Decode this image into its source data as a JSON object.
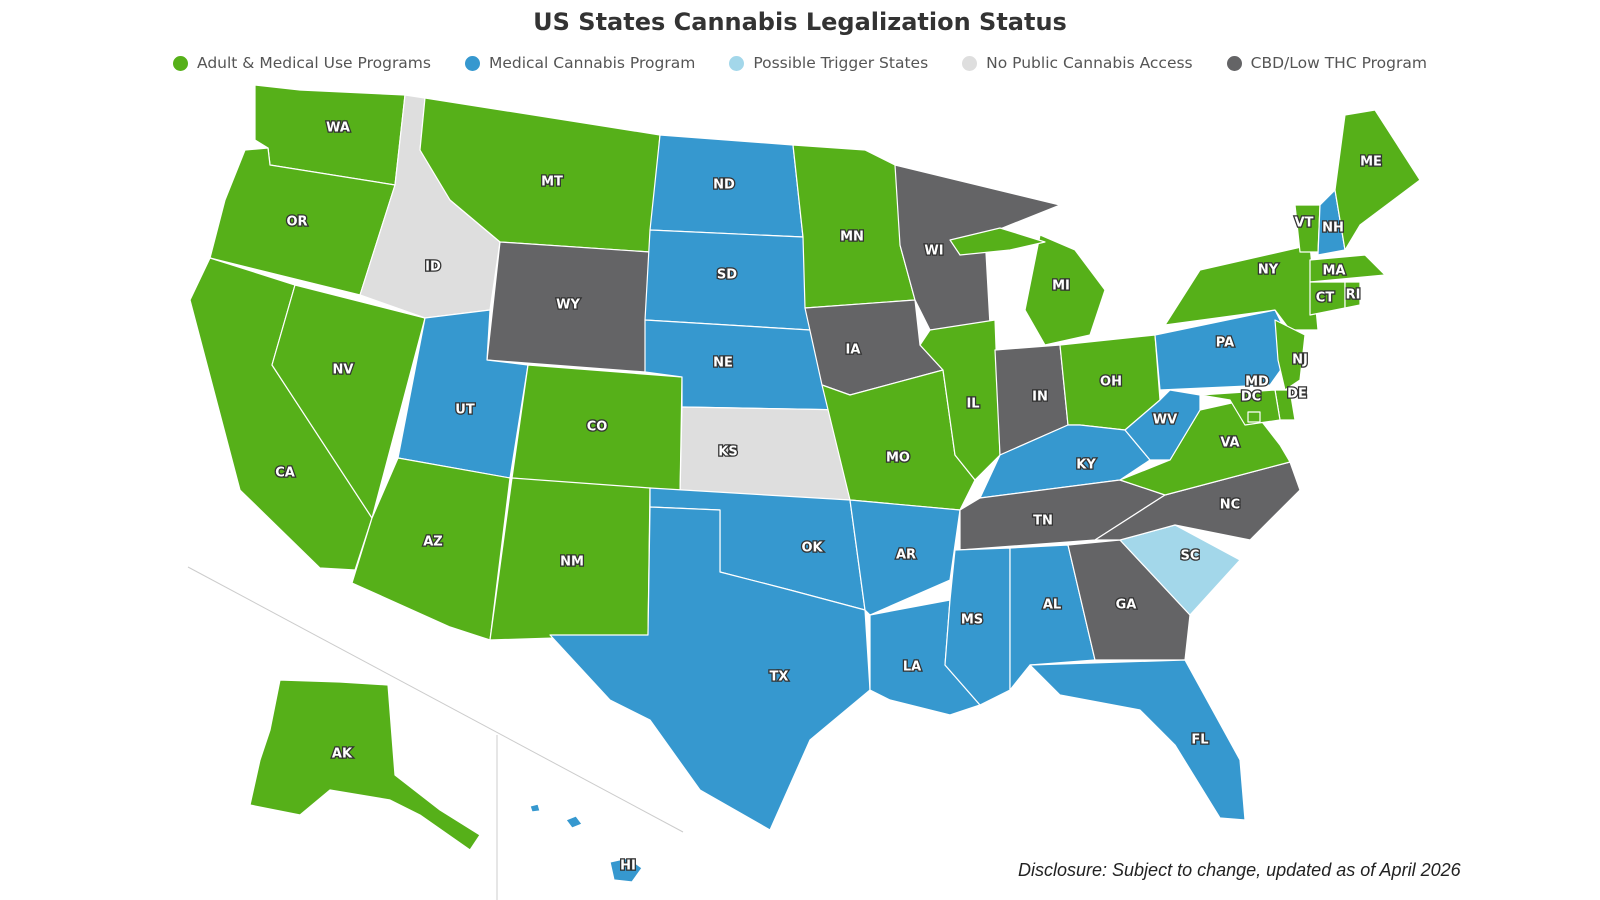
{
  "title": "US States Cannabis Legalization Status",
  "legend": [
    {
      "key": "adult",
      "label": "Adult & Medical Use Programs",
      "color": "#56B019"
    },
    {
      "key": "medical",
      "label": "Medical Cannabis Program",
      "color": "#3698CF"
    },
    {
      "key": "trigger",
      "label": "Possible Trigger States",
      "color": "#A3D7EA"
    },
    {
      "key": "none",
      "label": "No Public Cannabis Access",
      "color": "#DEDEDE"
    },
    {
      "key": "cbd",
      "label": "CBD/Low THC Program",
      "color": "#646466"
    }
  ],
  "states": [
    {
      "abbr": "WA",
      "status": "adult"
    },
    {
      "abbr": "OR",
      "status": "adult"
    },
    {
      "abbr": "CA",
      "status": "adult"
    },
    {
      "abbr": "NV",
      "status": "adult"
    },
    {
      "abbr": "ID",
      "status": "none"
    },
    {
      "abbr": "MT",
      "status": "adult"
    },
    {
      "abbr": "WY",
      "status": "cbd"
    },
    {
      "abbr": "UT",
      "status": "medical"
    },
    {
      "abbr": "AZ",
      "status": "adult"
    },
    {
      "abbr": "CO",
      "status": "adult"
    },
    {
      "abbr": "NM",
      "status": "adult"
    },
    {
      "abbr": "ND",
      "status": "medical"
    },
    {
      "abbr": "SD",
      "status": "medical"
    },
    {
      "abbr": "NE",
      "status": "medical"
    },
    {
      "abbr": "KS",
      "status": "none"
    },
    {
      "abbr": "OK",
      "status": "medical"
    },
    {
      "abbr": "TX",
      "status": "medical"
    },
    {
      "abbr": "MN",
      "status": "adult"
    },
    {
      "abbr": "IA",
      "status": "cbd"
    },
    {
      "abbr": "MO",
      "status": "adult"
    },
    {
      "abbr": "AR",
      "status": "medical"
    },
    {
      "abbr": "LA",
      "status": "medical"
    },
    {
      "abbr": "WI",
      "status": "cbd"
    },
    {
      "abbr": "IL",
      "status": "adult"
    },
    {
      "abbr": "MI",
      "status": "adult"
    },
    {
      "abbr": "IN",
      "status": "cbd"
    },
    {
      "abbr": "OH",
      "status": "adult"
    },
    {
      "abbr": "KY",
      "status": "medical"
    },
    {
      "abbr": "TN",
      "status": "cbd"
    },
    {
      "abbr": "MS",
      "status": "medical"
    },
    {
      "abbr": "AL",
      "status": "medical"
    },
    {
      "abbr": "GA",
      "status": "cbd"
    },
    {
      "abbr": "FL",
      "status": "medical"
    },
    {
      "abbr": "SC",
      "status": "trigger"
    },
    {
      "abbr": "NC",
      "status": "cbd"
    },
    {
      "abbr": "VA",
      "status": "adult"
    },
    {
      "abbr": "WV",
      "status": "medical"
    },
    {
      "abbr": "PA",
      "status": "medical"
    },
    {
      "abbr": "NY",
      "status": "adult"
    },
    {
      "abbr": "VT",
      "status": "adult"
    },
    {
      "abbr": "NH",
      "status": "medical"
    },
    {
      "abbr": "ME",
      "status": "adult"
    },
    {
      "abbr": "MA",
      "status": "adult"
    },
    {
      "abbr": "CT",
      "status": "adult"
    },
    {
      "abbr": "RI",
      "status": "adult"
    },
    {
      "abbr": "NJ",
      "status": "adult"
    },
    {
      "abbr": "DE",
      "status": "adult"
    },
    {
      "abbr": "MD",
      "status": "adult"
    },
    {
      "abbr": "DC",
      "status": "adult"
    },
    {
      "abbr": "AK",
      "status": "adult"
    },
    {
      "abbr": "HI",
      "status": "medical"
    }
  ],
  "disclosure": "Disclosure: Subject to change, updated as of  April 2026"
}
